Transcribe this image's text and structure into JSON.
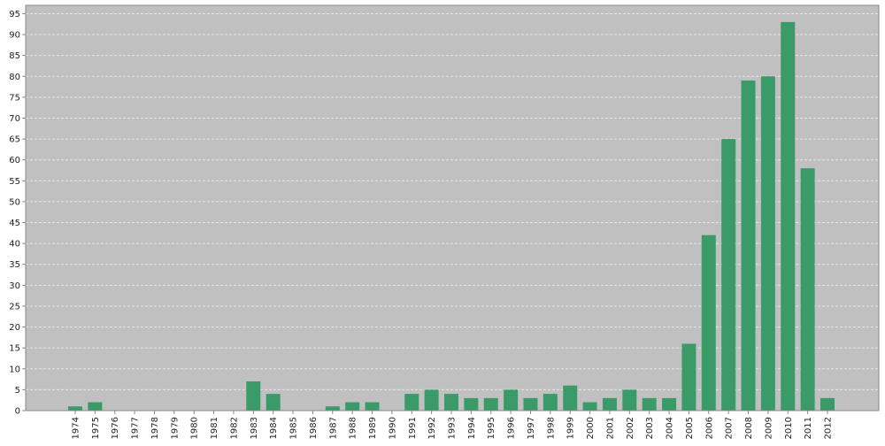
{
  "chart_data": {
    "type": "bar",
    "title": "",
    "xlabel": "",
    "ylabel": "",
    "categories": [
      "1974",
      "1975",
      "1976",
      "1977",
      "1978",
      "1979",
      "1980",
      "1981",
      "1982",
      "1983",
      "1984",
      "1985",
      "1986",
      "1987",
      "1988",
      "1989",
      "1990",
      "1991",
      "1992",
      "1993",
      "1994",
      "1995",
      "1996",
      "1997",
      "1998",
      "1999",
      "2000",
      "2001",
      "2002",
      "2003",
      "2004",
      "2005",
      "2006",
      "2007",
      "2008",
      "2009",
      "2010",
      "2011",
      "2012"
    ],
    "values": [
      1,
      2,
      0,
      0,
      0,
      0,
      0,
      0,
      0,
      7,
      4,
      0,
      0,
      1,
      2,
      2,
      0,
      4,
      5,
      4,
      3,
      3,
      5,
      3,
      4,
      6,
      2,
      3,
      5,
      3,
      3,
      16,
      42,
      65,
      79,
      80,
      93,
      58,
      3
    ],
    "ylim": [
      0,
      97
    ],
    "yticks": [
      0,
      5,
      10,
      15,
      20,
      25,
      30,
      35,
      40,
      45,
      50,
      55,
      60,
      65,
      70,
      75,
      80,
      85,
      90,
      95
    ],
    "grid": true,
    "legend": "none",
    "colors": {
      "plot_background": "#c0c0c0",
      "bar": "#3a9a68",
      "grid": "#e6e6e6",
      "axis": "#888888",
      "text": "#222222"
    }
  }
}
